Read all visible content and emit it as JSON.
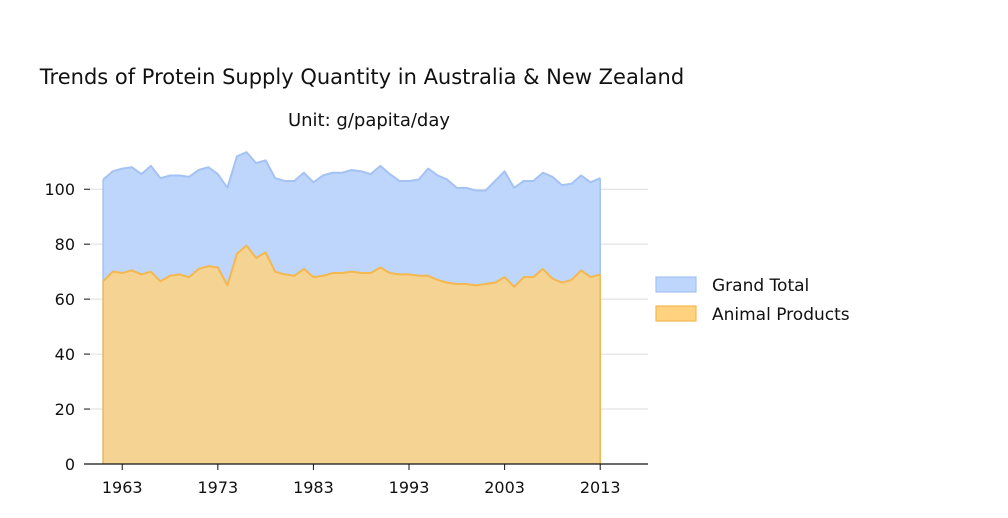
{
  "chart_data": {
    "type": "area",
    "title": "Trends of Protein Supply Quantity in Australia & New Zealand",
    "subtitle": "Unit: g/papita/day",
    "xlabel": "",
    "ylabel": "",
    "x": [
      1961,
      1962,
      1963,
      1964,
      1965,
      1966,
      1967,
      1968,
      1969,
      1970,
      1971,
      1972,
      1973,
      1974,
      1975,
      1976,
      1977,
      1978,
      1979,
      1980,
      1981,
      1982,
      1983,
      1984,
      1985,
      1986,
      1987,
      1988,
      1989,
      1990,
      1991,
      1992,
      1993,
      1994,
      1995,
      1996,
      1997,
      1998,
      1999,
      2000,
      2001,
      2002,
      2003,
      2004,
      2005,
      2006,
      2007,
      2008,
      2009,
      2010,
      2011,
      2012,
      2013
    ],
    "xlim": [
      1959,
      2018
    ],
    "ylim": [
      0,
      115
    ],
    "xticks": [
      1963,
      1973,
      1983,
      1993,
      2003,
      2013
    ],
    "xtick_labels": [
      "1963",
      "1973",
      "1983",
      "1993",
      "2003",
      "2013"
    ],
    "yticks": [
      0,
      20,
      40,
      60,
      80,
      100
    ],
    "ytick_labels": [
      "0",
      "20",
      "40",
      "60",
      "80",
      "100"
    ],
    "grid": "horizontal",
    "legend_position": "right",
    "series": [
      {
        "name": "Grand Total",
        "color": "#a4c2f4",
        "fill": "#bed6fb",
        "values": [
          103.5,
          106.5,
          107.5,
          108,
          105.5,
          108.5,
          104,
          105,
          105,
          104.5,
          107,
          108,
          105.5,
          100.5,
          112,
          113.5,
          109.5,
          110.5,
          104,
          103,
          103,
          106,
          102.5,
          105,
          106,
          106,
          107,
          106.5,
          105.5,
          108.5,
          105.5,
          103,
          103,
          103.5,
          107.5,
          105,
          103.5,
          100.5,
          100.5,
          99.5,
          99.5,
          103,
          106.5,
          100.5,
          103,
          103,
          106,
          104.5,
          101.5,
          102,
          105,
          102.5,
          104
        ]
      },
      {
        "name": "Animal Products",
        "color": "#f3b84f",
        "fill": "#ffd27f",
        "values": [
          66.5,
          70,
          69.5,
          70.5,
          69,
          70,
          66.5,
          68.5,
          69,
          68,
          71,
          72,
          71.5,
          65,
          76.5,
          79.5,
          75,
          77,
          70,
          69,
          68.5,
          71,
          68,
          68.5,
          69.5,
          69.5,
          70,
          69.5,
          69.5,
          71.5,
          69.5,
          69,
          69,
          68.5,
          68.5,
          67,
          66,
          65.5,
          65.5,
          65,
          65.5,
          66,
          68,
          64.5,
          68,
          68,
          71,
          67.5,
          66,
          67,
          70.5,
          68,
          69
        ]
      }
    ]
  }
}
